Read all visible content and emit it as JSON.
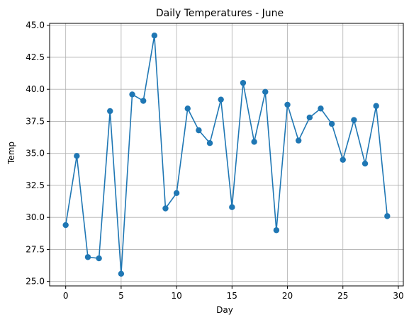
{
  "chart_data": {
    "type": "line",
    "title": "Daily Temperatures - June",
    "xlabel": "Day",
    "ylabel": "Temp",
    "xlim": [
      -1.45,
      30.45
    ],
    "ylim": [
      24.65,
      45.15
    ],
    "xticks": [
      0,
      5,
      10,
      15,
      20,
      25,
      30
    ],
    "yticks": [
      25.0,
      27.5,
      30.0,
      32.5,
      35.0,
      37.5,
      40.0,
      42.5,
      45.0
    ],
    "grid": true,
    "color": "#1f77b4",
    "marker": "circle",
    "series": [
      {
        "x": [
          0,
          1,
          2,
          3,
          4,
          5,
          6,
          7,
          8,
          9,
          10,
          11,
          12,
          13,
          14,
          15,
          16,
          17,
          18,
          19,
          20,
          21,
          22,
          23,
          24,
          25,
          26,
          27,
          28,
          29
        ],
        "values": [
          29.4,
          34.8,
          26.9,
          26.8,
          38.3,
          25.6,
          39.6,
          39.1,
          44.2,
          30.7,
          31.9,
          38.5,
          36.8,
          35.8,
          39.2,
          30.8,
          40.5,
          35.9,
          39.8,
          29.0,
          38.8,
          36.0,
          37.8,
          38.5,
          37.3,
          34.5,
          37.6,
          34.2,
          38.7,
          30.1
        ]
      }
    ]
  }
}
